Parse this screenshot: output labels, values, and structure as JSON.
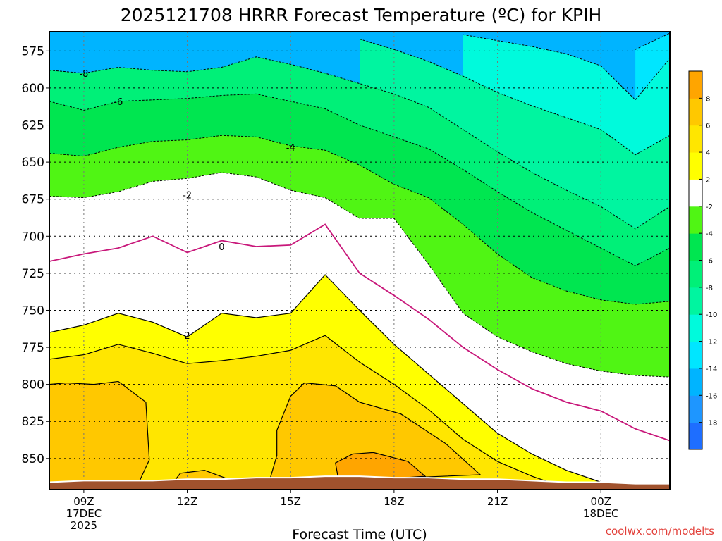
{
  "chart_data": {
    "type": "contour",
    "title": "2025121708 HRRR Forecast Temperature (ºC) for KPIH",
    "xlabel": "Forecast Time (UTC)",
    "ylabel": "",
    "credit": "coolwx.com/modelts",
    "x_ticks": [
      {
        "hour": 9,
        "lines": [
          "09Z",
          "17DEC",
          "2025"
        ]
      },
      {
        "hour": 12,
        "lines": [
          "12Z"
        ]
      },
      {
        "hour": 15,
        "lines": [
          "15Z"
        ]
      },
      {
        "hour": 18,
        "lines": [
          "18Z"
        ]
      },
      {
        "hour": 21,
        "lines": [
          "21Z"
        ]
      },
      {
        "hour": 24,
        "lines": [
          "00Z",
          "18DEC"
        ]
      }
    ],
    "xlim": [
      8,
      26
    ],
    "y_ticks": [
      575,
      600,
      625,
      650,
      675,
      700,
      725,
      750,
      775,
      800,
      825,
      850
    ],
    "ylim": [
      562,
      871
    ],
    "colorbar": {
      "levels": [
        -20,
        -18,
        -16,
        -14,
        -12,
        -10,
        -8,
        -6,
        -4,
        -2,
        2,
        4,
        6,
        8,
        10
      ],
      "tick_labels": [
        -18,
        -16,
        -14,
        -12,
        -10,
        -8,
        -6,
        -4,
        -2,
        2,
        4,
        6,
        8
      ],
      "colors": [
        "#1e6eff",
        "#1e96ff",
        "#00b4ff",
        "#00e6ff",
        "#00fadc",
        "#00f5a0",
        "#00f078",
        "#00e650",
        "#50f514",
        "#ffffff",
        "#ffff00",
        "#ffe600",
        "#ffc800",
        "#ffa500"
      ]
    },
    "hours": [
      8,
      9,
      10,
      11,
      12,
      13,
      14,
      15,
      16,
      17,
      18,
      19,
      20,
      21,
      22,
      23,
      24,
      25,
      26
    ],
    "isotherms": [
      {
        "value": -14,
        "p": [
          null,
          null,
          null,
          null,
          null,
          null,
          null,
          null,
          null,
          null,
          null,
          null,
          null,
          null,
          null,
          null,
          null,
          574,
          563
        ]
      },
      {
        "value": -12,
        "p": [
          null,
          null,
          null,
          null,
          null,
          null,
          null,
          null,
          null,
          null,
          null,
          null,
          564,
          568,
          572,
          577,
          585,
          608,
          580
        ]
      },
      {
        "value": -10,
        "p": [
          null,
          null,
          null,
          null,
          null,
          null,
          null,
          null,
          null,
          567,
          574,
          582,
          592,
          603,
          612,
          620,
          628,
          645,
          632
        ]
      },
      {
        "value": -8,
        "p": [
          588,
          590,
          586,
          588,
          589,
          586,
          579,
          584,
          590,
          597,
          604,
          613,
          628,
          643,
          657,
          669,
          680,
          695,
          680
        ]
      },
      {
        "value": -6,
        "p": [
          609,
          615,
          609,
          608,
          607,
          605,
          604,
          609,
          614,
          625,
          633,
          641,
          655,
          670,
          684,
          696,
          708,
          720,
          708
        ]
      },
      {
        "value": -4,
        "p": [
          644,
          646,
          640,
          636,
          635,
          632,
          633,
          639,
          642,
          652,
          665,
          674,
          692,
          712,
          728,
          737,
          743,
          746,
          744
        ]
      },
      {
        "value": -2,
        "p": [
          673,
          674,
          670,
          663,
          661,
          657,
          660,
          669,
          674,
          688,
          688,
          719,
          752,
          768,
          778,
          786,
          791,
          794,
          795
        ]
      },
      {
        "value": 0,
        "p": [
          717,
          712,
          708,
          700,
          711,
          703,
          707,
          706,
          692,
          725,
          740,
          756,
          775,
          790,
          803,
          812,
          818,
          830,
          838
        ]
      },
      {
        "value": 2,
        "p": [
          765,
          760,
          752,
          758,
          768,
          752,
          755,
          752,
          726,
          750,
          773,
          793,
          813,
          833,
          847,
          858,
          866,
          870,
          871
        ]
      },
      {
        "value": 4,
        "p": [
          783,
          780,
          773,
          779,
          786,
          784,
          781,
          777,
          767,
          785,
          800,
          817,
          837,
          852,
          862,
          870,
          871,
          871,
          871
        ]
      }
    ],
    "warm_blobs": [
      {
        "value": 6,
        "points": [
          [
            8,
            800
          ],
          [
            8.5,
            799
          ],
          [
            9.3,
            800
          ],
          [
            10,
            798
          ],
          [
            10.8,
            812
          ],
          [
            10.9,
            851
          ],
          [
            10.6,
            866
          ],
          [
            8,
            866
          ]
        ]
      },
      {
        "value": 6,
        "points": [
          [
            15,
            808
          ],
          [
            15.4,
            799
          ],
          [
            16.3,
            801
          ],
          [
            17,
            812
          ],
          [
            18.2,
            820
          ],
          [
            19.5,
            840
          ],
          [
            20.5,
            861
          ],
          [
            15.2,
            866
          ],
          [
            14.4,
            864
          ],
          [
            14.6,
            848
          ],
          [
            14.6,
            831
          ]
        ]
      },
      {
        "value": 8,
        "points": [
          [
            16.3,
            853
          ],
          [
            16.8,
            847
          ],
          [
            17.4,
            846
          ],
          [
            18.4,
            852
          ],
          [
            18.9,
            862
          ],
          [
            16.4,
            866
          ]
        ]
      },
      {
        "value": 6,
        "points": [
          [
            11.8,
            860
          ],
          [
            12.5,
            858
          ],
          [
            13.2,
            864
          ],
          [
            11.6,
            866
          ]
        ]
      }
    ],
    "contour_labels": [
      {
        "text": "-8",
        "hour": 9,
        "p": 590
      },
      {
        "text": "-6",
        "hour": 10,
        "p": 609
      },
      {
        "text": "-4",
        "hour": 15,
        "p": 640
      },
      {
        "text": "-2",
        "hour": 12,
        "p": 672
      },
      {
        "text": "0",
        "hour": 13,
        "p": 707
      },
      {
        "text": "2",
        "hour": 12,
        "p": 767
      }
    ],
    "terrain_top": [
      866,
      865,
      865,
      865,
      864,
      864,
      863,
      863,
      862,
      862,
      863,
      863,
      864,
      864,
      865,
      866,
      866,
      867,
      867
    ]
  }
}
